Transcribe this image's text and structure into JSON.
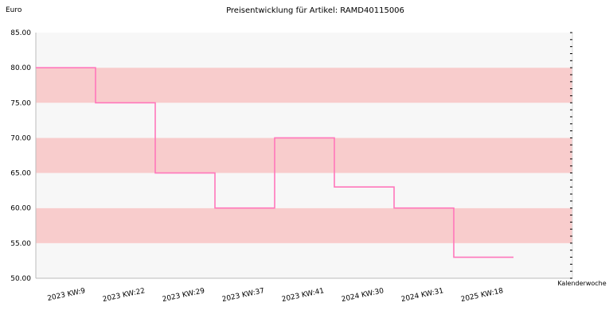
{
  "chart_data": {
    "type": "line",
    "step": true,
    "title": "Preisentwicklung für Artikel: RAMD40115006",
    "ylabel": "Euro",
    "xlabel": "Kalenderwoche",
    "categories": [
      "2023 KW:9",
      "2023 KW:22",
      "2023 KW:29",
      "2023 KW:37",
      "2023 KW:41",
      "2024 KW:30",
      "2024 KW:31",
      "2025 KW:18"
    ],
    "series": [
      {
        "values": [
          80.0,
          75.0,
          65.0,
          60.0,
          70.0,
          63.0,
          60.0,
          53.0
        ]
      }
    ],
    "ylim": [
      50,
      85
    ],
    "yticks": [
      50,
      55,
      60,
      65,
      70,
      75,
      80,
      85
    ],
    "ytick_labels": [
      "50.00",
      "55.00",
      "60.00",
      "65.00",
      "70.00",
      "75.00",
      "80.00",
      "85.00"
    ],
    "grid": "alternating horizontal bands",
    "colors": {
      "line": "#ff77bb",
      "band_dark": "#f8cccc",
      "band_light": "#f7f7f7",
      "axis": "#bbbbbb"
    }
  }
}
